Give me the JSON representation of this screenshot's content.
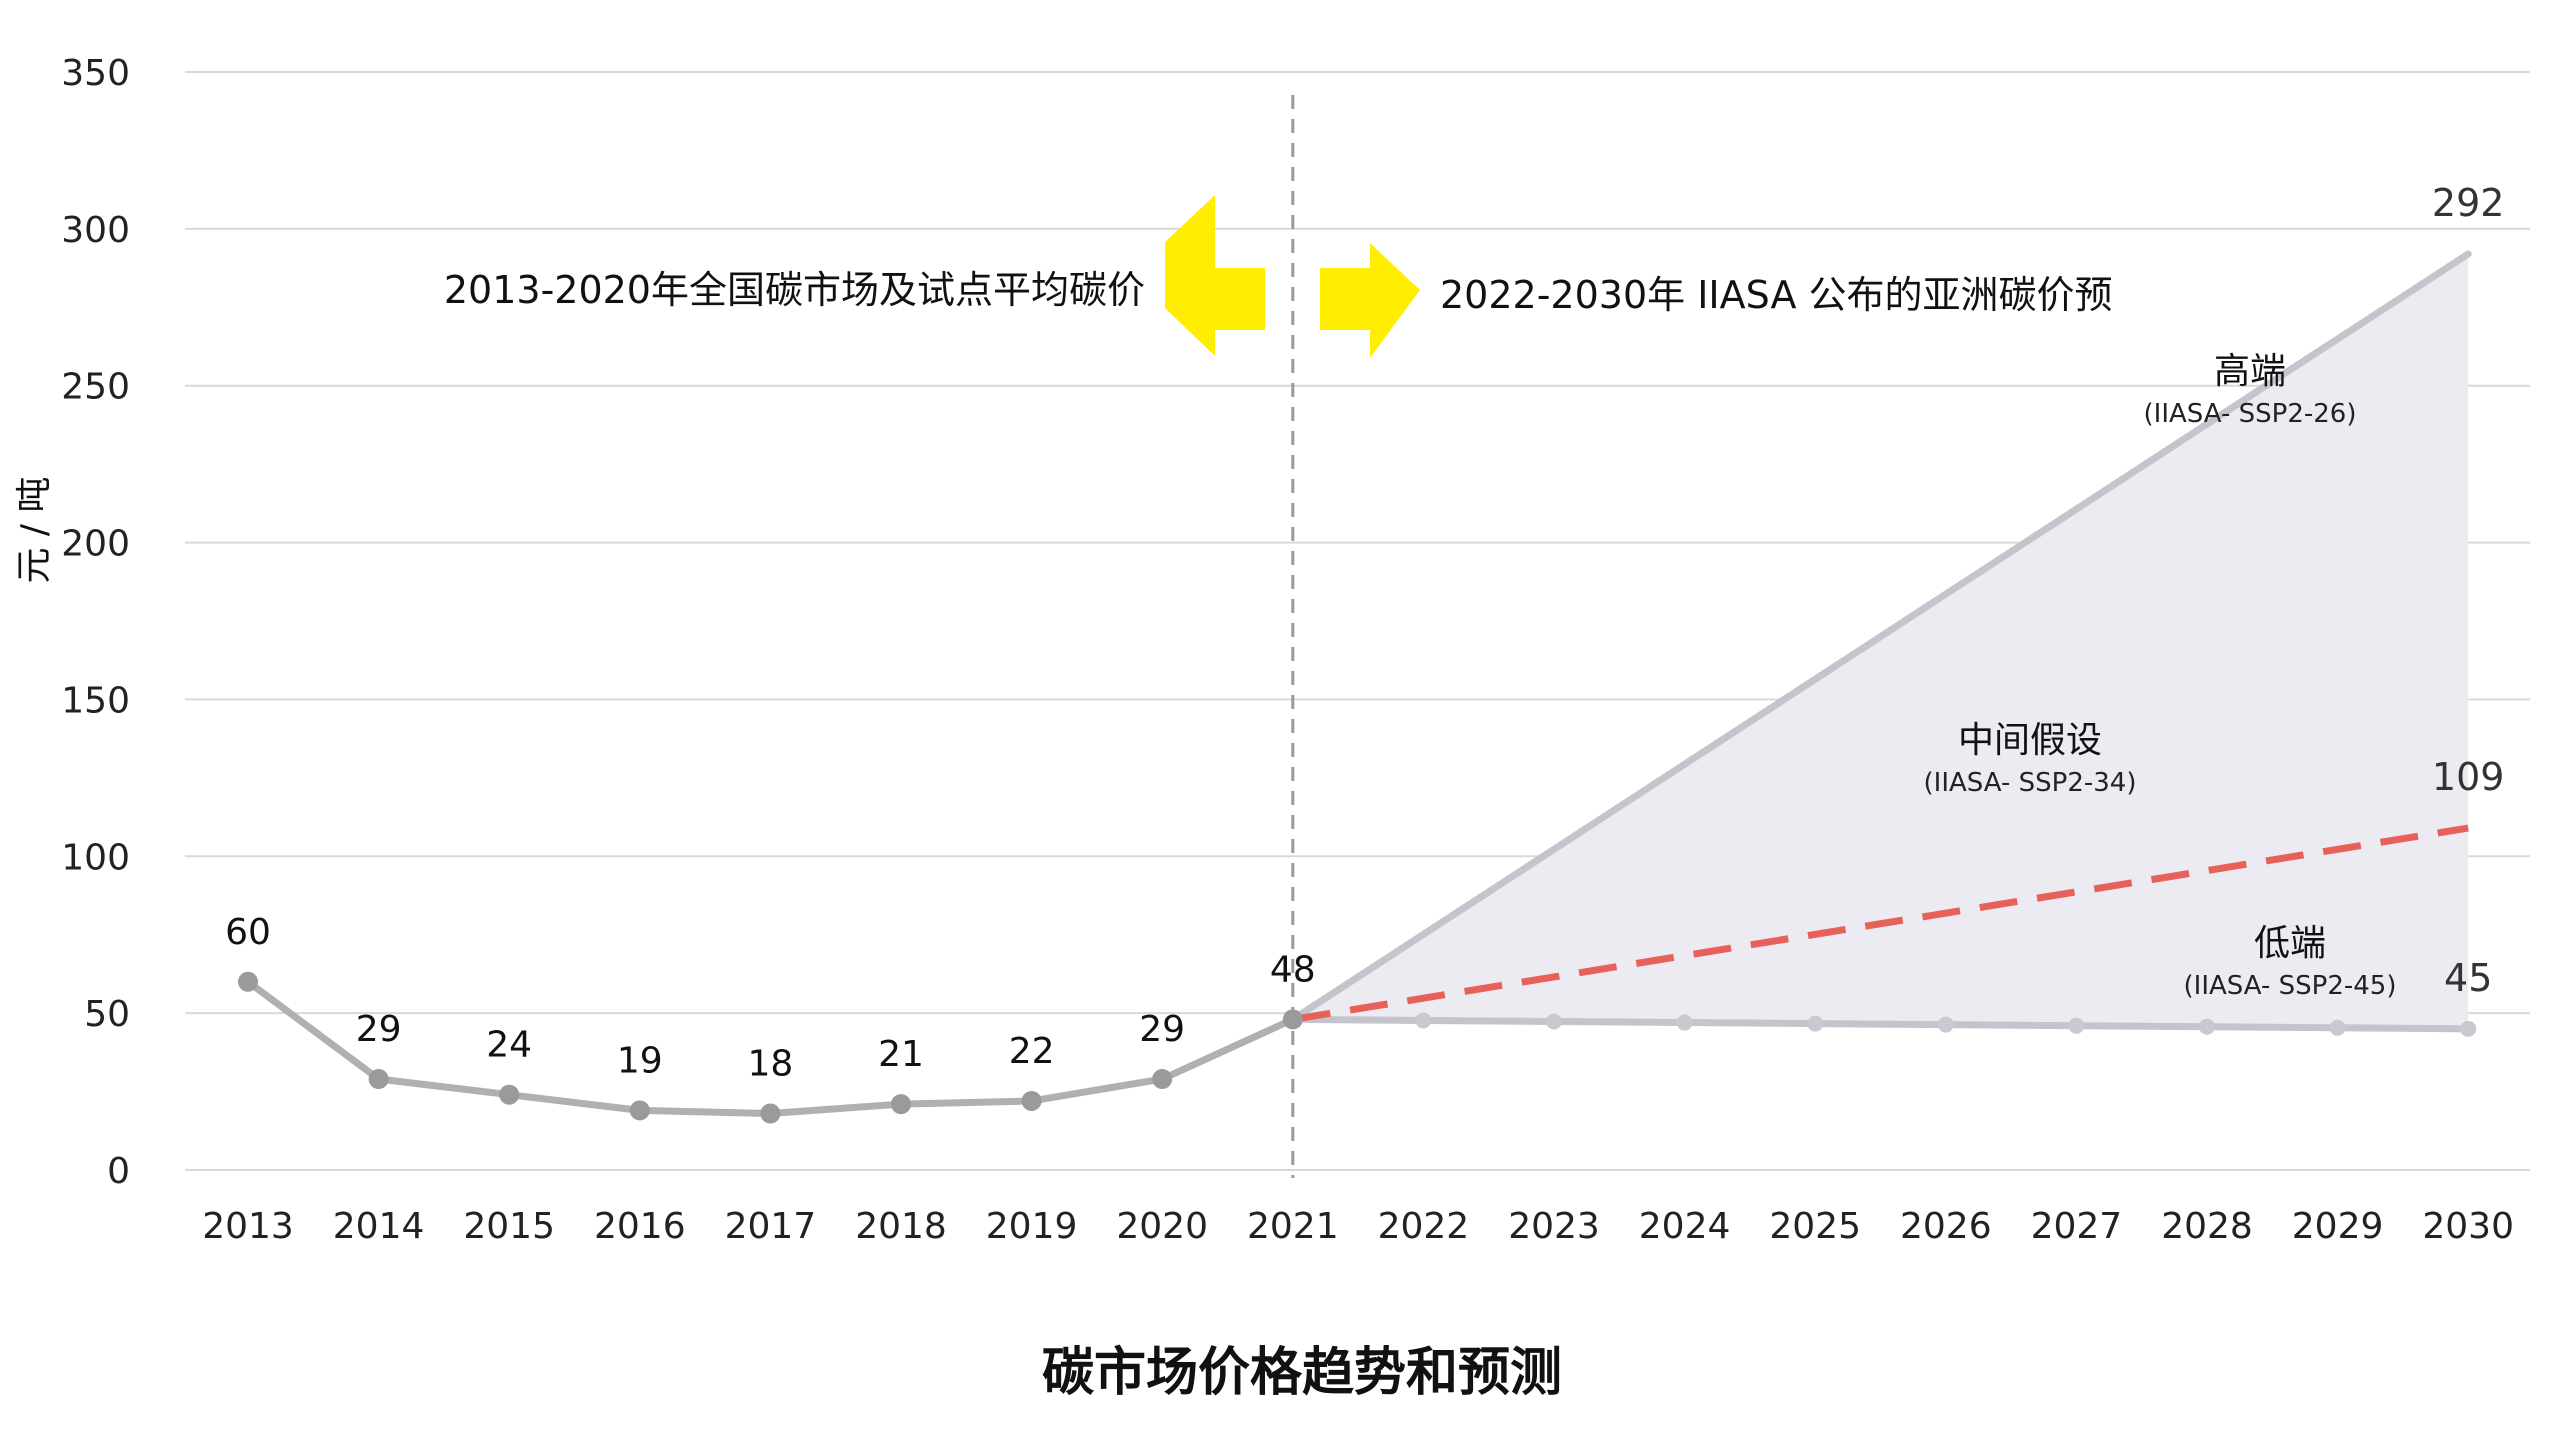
{
  "chart_data": {
    "type": "line",
    "title": "碳市场价格趋势和预测",
    "ylabel": "元 / 吨",
    "ylim": [
      0,
      350
    ],
    "yticks": [
      0,
      50,
      100,
      150,
      200,
      250,
      300,
      350
    ],
    "grid": true,
    "categories": [
      "2013",
      "2014",
      "2015",
      "2016",
      "2017",
      "2018",
      "2019",
      "2020",
      "2021",
      "2022",
      "2023",
      "2024",
      "2025",
      "2026",
      "2027",
      "2028",
      "2029",
      "2030"
    ],
    "historical": {
      "x": [
        "2013",
        "2014",
        "2015",
        "2016",
        "2017",
        "2018",
        "2019",
        "2020",
        "2021"
      ],
      "values": [
        60,
        29,
        24,
        19,
        18,
        21,
        22,
        29,
        48
      ],
      "labels": [
        "60",
        "29",
        "24",
        "19",
        "18",
        "21",
        "22",
        "29",
        "48"
      ]
    },
    "scenarios": [
      {
        "key": "high",
        "name": "高端",
        "sub": "(IIASA- SSP2-26)",
        "start": 48,
        "end": 292,
        "end_label": "292"
      },
      {
        "key": "mid",
        "name": "中间假设",
        "sub": "(IIASA- SSP2-34)",
        "start": 48,
        "end": 109,
        "end_label": "109"
      },
      {
        "key": "low",
        "name": "低端",
        "sub": "(IIASA- SSP2-45)",
        "start": 48,
        "end": 45,
        "end_label": "45"
      }
    ],
    "divider_year": "2021",
    "annotations": {
      "left": "2013-2020年全国碳市场及试点平均碳价",
      "right": "2022-2030年 IIASA 公布的亚洲碳价预"
    },
    "colors": {
      "historical": "#b0b0b0",
      "historical_marker": "#9a9a9a",
      "high": "#c4c4cc",
      "low": "#c4c4cc",
      "low_marker": "#c9c9cf",
      "mid": "#e8605a",
      "band": "#ebebf1",
      "grid": "#d9d9d9",
      "divider": "#999999",
      "arrow": "#ffee00"
    }
  }
}
